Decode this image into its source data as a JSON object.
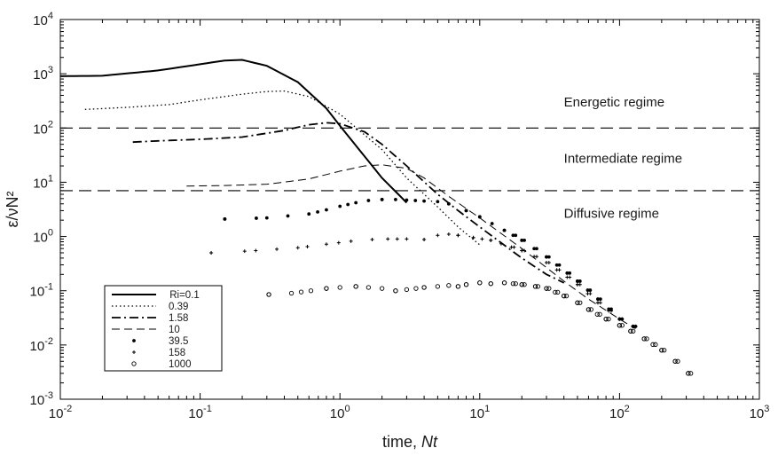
{
  "chart_data": {
    "type": "line",
    "xscale": "log",
    "yscale": "log",
    "xlim": [
      0.01,
      1000
    ],
    "ylim": [
      0.001,
      10000
    ],
    "xlabel_text": "time, ",
    "xlabel_italic": "Nt",
    "ylabel": "ε/νN²",
    "x_ticks": [
      {
        "base": "10",
        "exp": "-2"
      },
      {
        "base": "10",
        "exp": "-1"
      },
      {
        "base": "10",
        "exp": "0"
      },
      {
        "base": "10",
        "exp": "1"
      },
      {
        "base": "10",
        "exp": "2"
      },
      {
        "base": "10",
        "exp": "3"
      }
    ],
    "y_ticks": [
      {
        "base": "10",
        "exp": "-3"
      },
      {
        "base": "10",
        "exp": "-2"
      },
      {
        "base": "10",
        "exp": "-1"
      },
      {
        "base": "10",
        "exp": "0"
      },
      {
        "base": "10",
        "exp": "1"
      },
      {
        "base": "10",
        "exp": "2"
      },
      {
        "base": "10",
        "exp": "3"
      },
      {
        "base": "10",
        "exp": "4"
      }
    ],
    "thresholds": [
      100,
      7
    ],
    "regimes": [
      {
        "label": "Energetic regime",
        "x": 40,
        "y": 250
      },
      {
        "label": "Intermediate regime",
        "x": 40,
        "y": 23
      },
      {
        "label": "Diffusive regime",
        "x": 40,
        "y": 2.2
      }
    ],
    "legend_position": "bottom-left",
    "series": [
      {
        "name": "Ri=0.1",
        "style": "solid",
        "x": [
          0.01,
          0.02,
          0.05,
          0.1,
          0.15,
          0.2,
          0.3,
          0.5,
          0.8,
          1.0,
          1.5,
          2.0,
          3.0
        ],
        "y": [
          900,
          920,
          1150,
          1500,
          1750,
          1800,
          1400,
          700,
          230,
          110,
          30,
          12,
          4.2
        ]
      },
      {
        "name": "0.39",
        "style": "dotted",
        "x": [
          0.015,
          0.03,
          0.06,
          0.1,
          0.2,
          0.3,
          0.4,
          0.6,
          1.0,
          2.0,
          3.0,
          5.0,
          7.0,
          10
        ],
        "y": [
          220,
          240,
          270,
          330,
          420,
          470,
          480,
          380,
          180,
          40,
          12,
          3.5,
          1.5,
          0.7
        ]
      },
      {
        "name": "1.58",
        "style": "dashdot",
        "x": [
          0.033,
          0.05,
          0.1,
          0.2,
          0.4,
          0.6,
          0.8,
          1.0,
          1.5,
          2.0,
          3.0,
          5.0,
          7.0,
          10,
          20,
          30,
          40
        ],
        "y": [
          55,
          58,
          62,
          68,
          90,
          115,
          125,
          120,
          85,
          50,
          20,
          6,
          3,
          1.5,
          0.4,
          0.2,
          0.14
        ]
      },
      {
        "name": "10",
        "style": "dashed",
        "x": [
          0.08,
          0.15,
          0.3,
          0.6,
          1.0,
          1.5,
          2.0,
          3.0,
          4.0,
          6.0,
          10,
          20,
          40,
          60,
          100,
          130
        ],
        "y": [
          8.5,
          8.7,
          9.2,
          11.5,
          16,
          20,
          21,
          18,
          12,
          5.5,
          2.2,
          0.6,
          0.15,
          0.07,
          0.03,
          0.02
        ]
      },
      {
        "name": "39.5",
        "style": "dots",
        "x": [
          0.15,
          0.3,
          0.6,
          0.8,
          1.0,
          1.3,
          1.6,
          2.0,
          2.5,
          3.0,
          4.0,
          5.0,
          6.0,
          8.0,
          10,
          15,
          20,
          30,
          50,
          70,
          100,
          125
        ],
        "y": [
          2.1,
          2.2,
          2.6,
          3.1,
          3.6,
          4.2,
          4.6,
          4.8,
          4.8,
          4.7,
          4.5,
          4.4,
          4.0,
          3.0,
          2.3,
          1.3,
          0.85,
          0.42,
          0.15,
          0.07,
          0.03,
          0.022
        ]
      },
      {
        "name": "158",
        "style": "plus",
        "x": [
          0.12,
          0.25,
          0.5,
          0.8,
          1.2,
          1.7,
          2.2,
          3.0,
          4.0,
          5.0,
          6.0,
          7.0,
          9.0,
          12,
          20,
          30,
          50,
          70,
          100,
          125
        ],
        "y": [
          0.5,
          0.55,
          0.62,
          0.72,
          0.82,
          0.88,
          0.9,
          0.9,
          0.88,
          1.05,
          1.1,
          1.05,
          0.95,
          0.85,
          0.55,
          0.33,
          0.13,
          0.06,
          0.03,
          0.022
        ]
      },
      {
        "name": "1000",
        "style": "circle",
        "x": [
          0.31,
          0.45,
          0.62,
          0.8,
          1.0,
          1.3,
          1.6,
          2.0,
          2.5,
          3.0,
          3.5,
          4.0,
          5.0,
          6.0,
          7.0,
          8.0,
          10,
          12,
          15,
          20,
          25,
          30,
          40,
          50,
          60,
          80,
          100,
          120,
          150,
          200,
          250,
          310
        ],
        "y": [
          0.085,
          0.09,
          0.1,
          0.11,
          0.115,
          0.12,
          0.115,
          0.11,
          0.1,
          0.105,
          0.11,
          0.115,
          0.12,
          0.125,
          0.12,
          0.13,
          0.14,
          0.135,
          0.14,
          0.13,
          0.12,
          0.11,
          0.08,
          0.06,
          0.045,
          0.03,
          0.023,
          0.018,
          0.013,
          0.008,
          0.005,
          0.003
        ]
      }
    ]
  }
}
